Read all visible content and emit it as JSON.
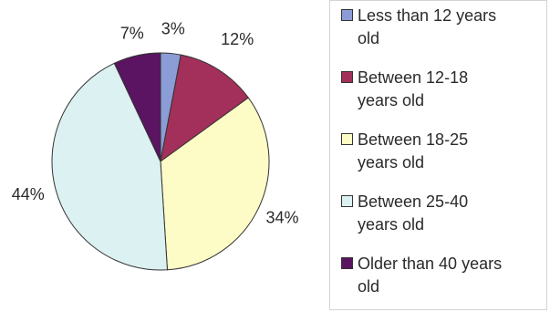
{
  "chart_data": {
    "type": "pie",
    "categories": [
      "Less than 12 years old",
      "Between 12-18 years old",
      "Between 18-25 years old",
      "Between 25-40 years old",
      "Older than 40 years old"
    ],
    "values": [
      3,
      12,
      34,
      44,
      7
    ],
    "value_labels": [
      "3%",
      "12%",
      "34%",
      "44%",
      "7%"
    ],
    "colors": [
      "#8b9cd6",
      "#a3305a",
      "#fdfcc6",
      "#dcf1f1",
      "#5a1461"
    ],
    "legend_placement": "right",
    "title": ""
  },
  "legend": {
    "items": [
      {
        "line1": "Less than 12 years",
        "line2": "old"
      },
      {
        "line1": "Between 12-18",
        "line2": "years old"
      },
      {
        "line1": "Between 18-25",
        "line2": "years old"
      },
      {
        "line1": "Between 25-40",
        "line2": "years old"
      },
      {
        "line1": "Older than 40 years",
        "line2": "old"
      }
    ]
  }
}
